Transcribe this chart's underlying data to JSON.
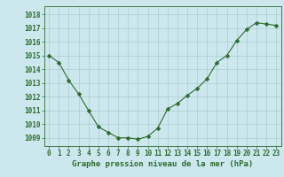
{
  "x": [
    0,
    1,
    2,
    3,
    4,
    5,
    6,
    7,
    8,
    9,
    10,
    11,
    12,
    13,
    14,
    15,
    16,
    17,
    18,
    19,
    20,
    21,
    22,
    23
  ],
  "y": [
    1015.0,
    1014.5,
    1013.2,
    1012.2,
    1011.0,
    1009.8,
    1009.4,
    1009.0,
    1009.0,
    1008.9,
    1009.1,
    1009.7,
    1011.1,
    1011.5,
    1012.1,
    1012.6,
    1013.3,
    1014.5,
    1015.0,
    1016.1,
    1016.9,
    1017.4,
    1017.3,
    1017.2
  ],
  "line_color": "#2d6a2d",
  "marker": "D",
  "marker_size": 2.5,
  "bg_color": "#cce8ee",
  "grid_color": "#aacccc",
  "ylabel_ticks": [
    1009,
    1010,
    1011,
    1012,
    1013,
    1014,
    1015,
    1016,
    1017,
    1018
  ],
  "xlim": [
    -0.5,
    23.5
  ],
  "ylim": [
    1008.4,
    1018.6
  ],
  "xticks": [
    0,
    1,
    2,
    3,
    4,
    5,
    6,
    7,
    8,
    9,
    10,
    11,
    12,
    13,
    14,
    15,
    16,
    17,
    18,
    19,
    20,
    21,
    22,
    23
  ],
  "xlabel": "Graphe pression niveau de la mer (hPa)",
  "tick_fontsize": 5.5,
  "xlabel_fontsize": 6.5
}
